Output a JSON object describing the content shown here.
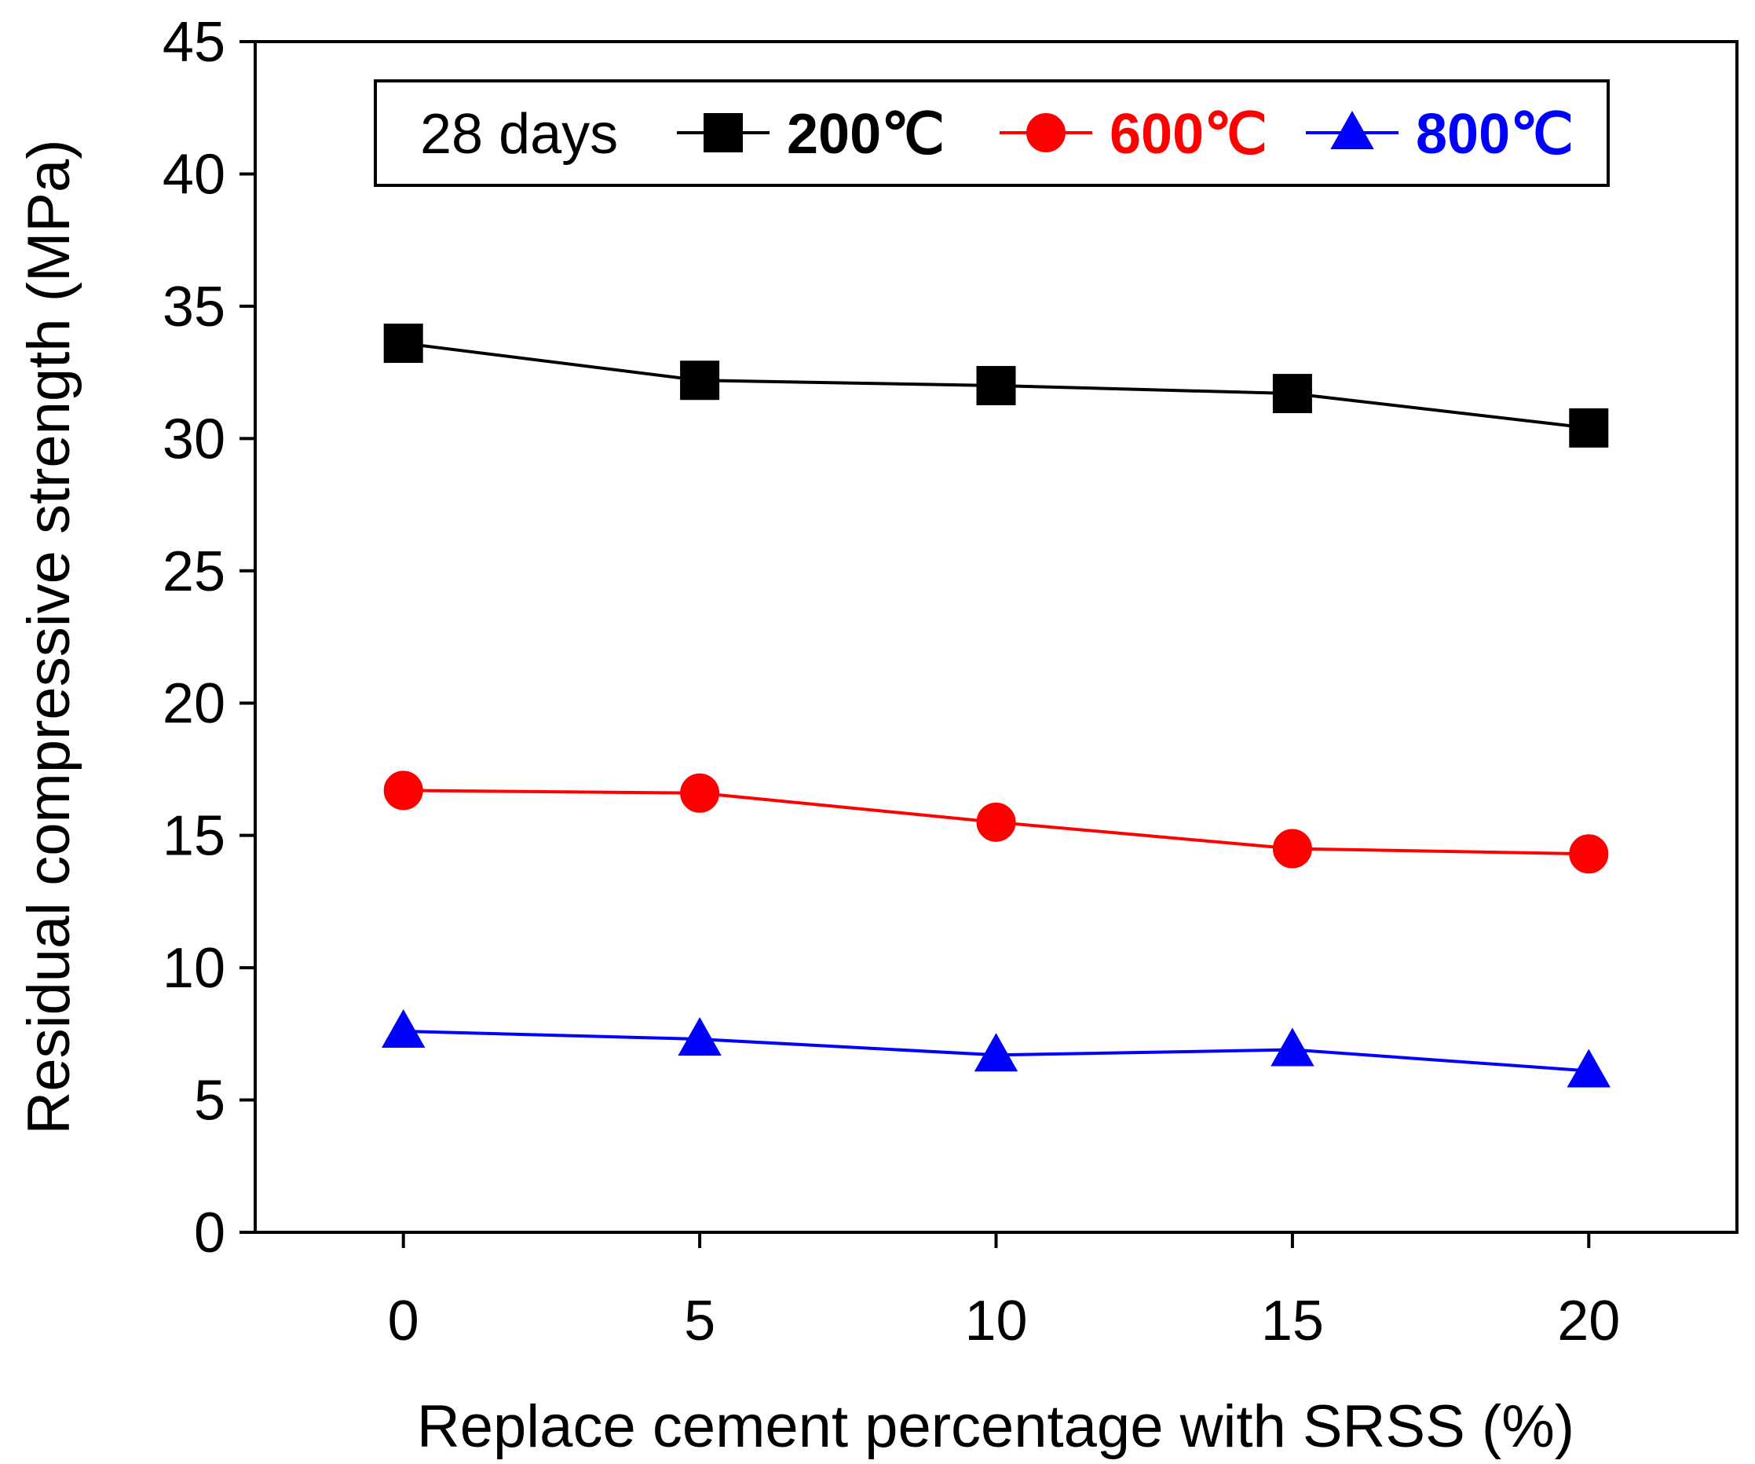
{
  "chart_data": {
    "type": "line",
    "xlabel": "Replace cement percentage with SRSS (%)",
    "ylabel": "Residual compressive strength (MPa)",
    "x": [
      0,
      5,
      10,
      15,
      20
    ],
    "xlim": [
      -2.5,
      22.5
    ],
    "ylim": [
      0,
      45
    ],
    "xticks": [
      "0",
      "5",
      "10",
      "15",
      "20"
    ],
    "yticks": [
      "0",
      "5",
      "10",
      "15",
      "20",
      "25",
      "30",
      "35",
      "40",
      "45"
    ],
    "grid": false,
    "legend_position": "top",
    "legend_title": "28 days",
    "series": [
      {
        "name": "200℃",
        "color": "#000000",
        "marker": "square",
        "values": [
          33.6,
          32.2,
          32.0,
          31.7,
          30.4
        ]
      },
      {
        "name": "600℃",
        "color": "#ff0000",
        "marker": "circle",
        "values": [
          16.7,
          16.6,
          15.5,
          14.5,
          14.3
        ]
      },
      {
        "name": "800℃",
        "color": "#0000ff",
        "marker": "triangle",
        "values": [
          7.6,
          7.3,
          6.7,
          6.9,
          6.1
        ]
      }
    ]
  }
}
